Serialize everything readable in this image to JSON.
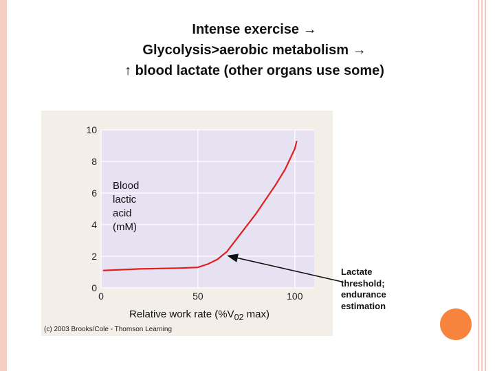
{
  "slide": {
    "title_lines": [
      "Intense exercise",
      "Glycolysis>aerobic metabolism",
      "blood lactate (other organs use some)"
    ],
    "title_line3_prefix": "↑",
    "arrow_glyph": "→"
  },
  "chart_data": {
    "type": "line",
    "ylabel": "Blood\nlactic\nacid\n(mM)",
    "xlabel_prefix": "Relative work rate (%V",
    "xlabel_sub": "02",
    "xlabel_suffix": " max)",
    "xlim": [
      0,
      110
    ],
    "ylim": [
      0,
      10
    ],
    "x_ticks": [
      0,
      50,
      100
    ],
    "y_ticks": [
      0,
      2,
      4,
      6,
      8,
      10
    ],
    "grid": true,
    "series": [
      {
        "color": "#e02020",
        "x": [
          1,
          10,
          20,
          30,
          40,
          50,
          55,
          60,
          65,
          70,
          75,
          80,
          85,
          90,
          95,
          100,
          101
        ],
        "y": [
          1.1,
          1.15,
          1.2,
          1.22,
          1.25,
          1.3,
          1.5,
          1.8,
          2.3,
          3.1,
          3.9,
          4.7,
          5.6,
          6.5,
          7.5,
          8.8,
          9.3
        ]
      }
    ],
    "annotation": {
      "text": "Lactate\nthreshold;\nendurance\nestimation",
      "points_to": {
        "x": 65,
        "y": 2.1
      }
    },
    "copyright": "(c) 2003 Brooks/Cole - Thomson Learning"
  },
  "colors": {
    "plot_background": "#e7e2f2",
    "accent_bar": "#f6cdbf",
    "circle": "#f7833d"
  }
}
